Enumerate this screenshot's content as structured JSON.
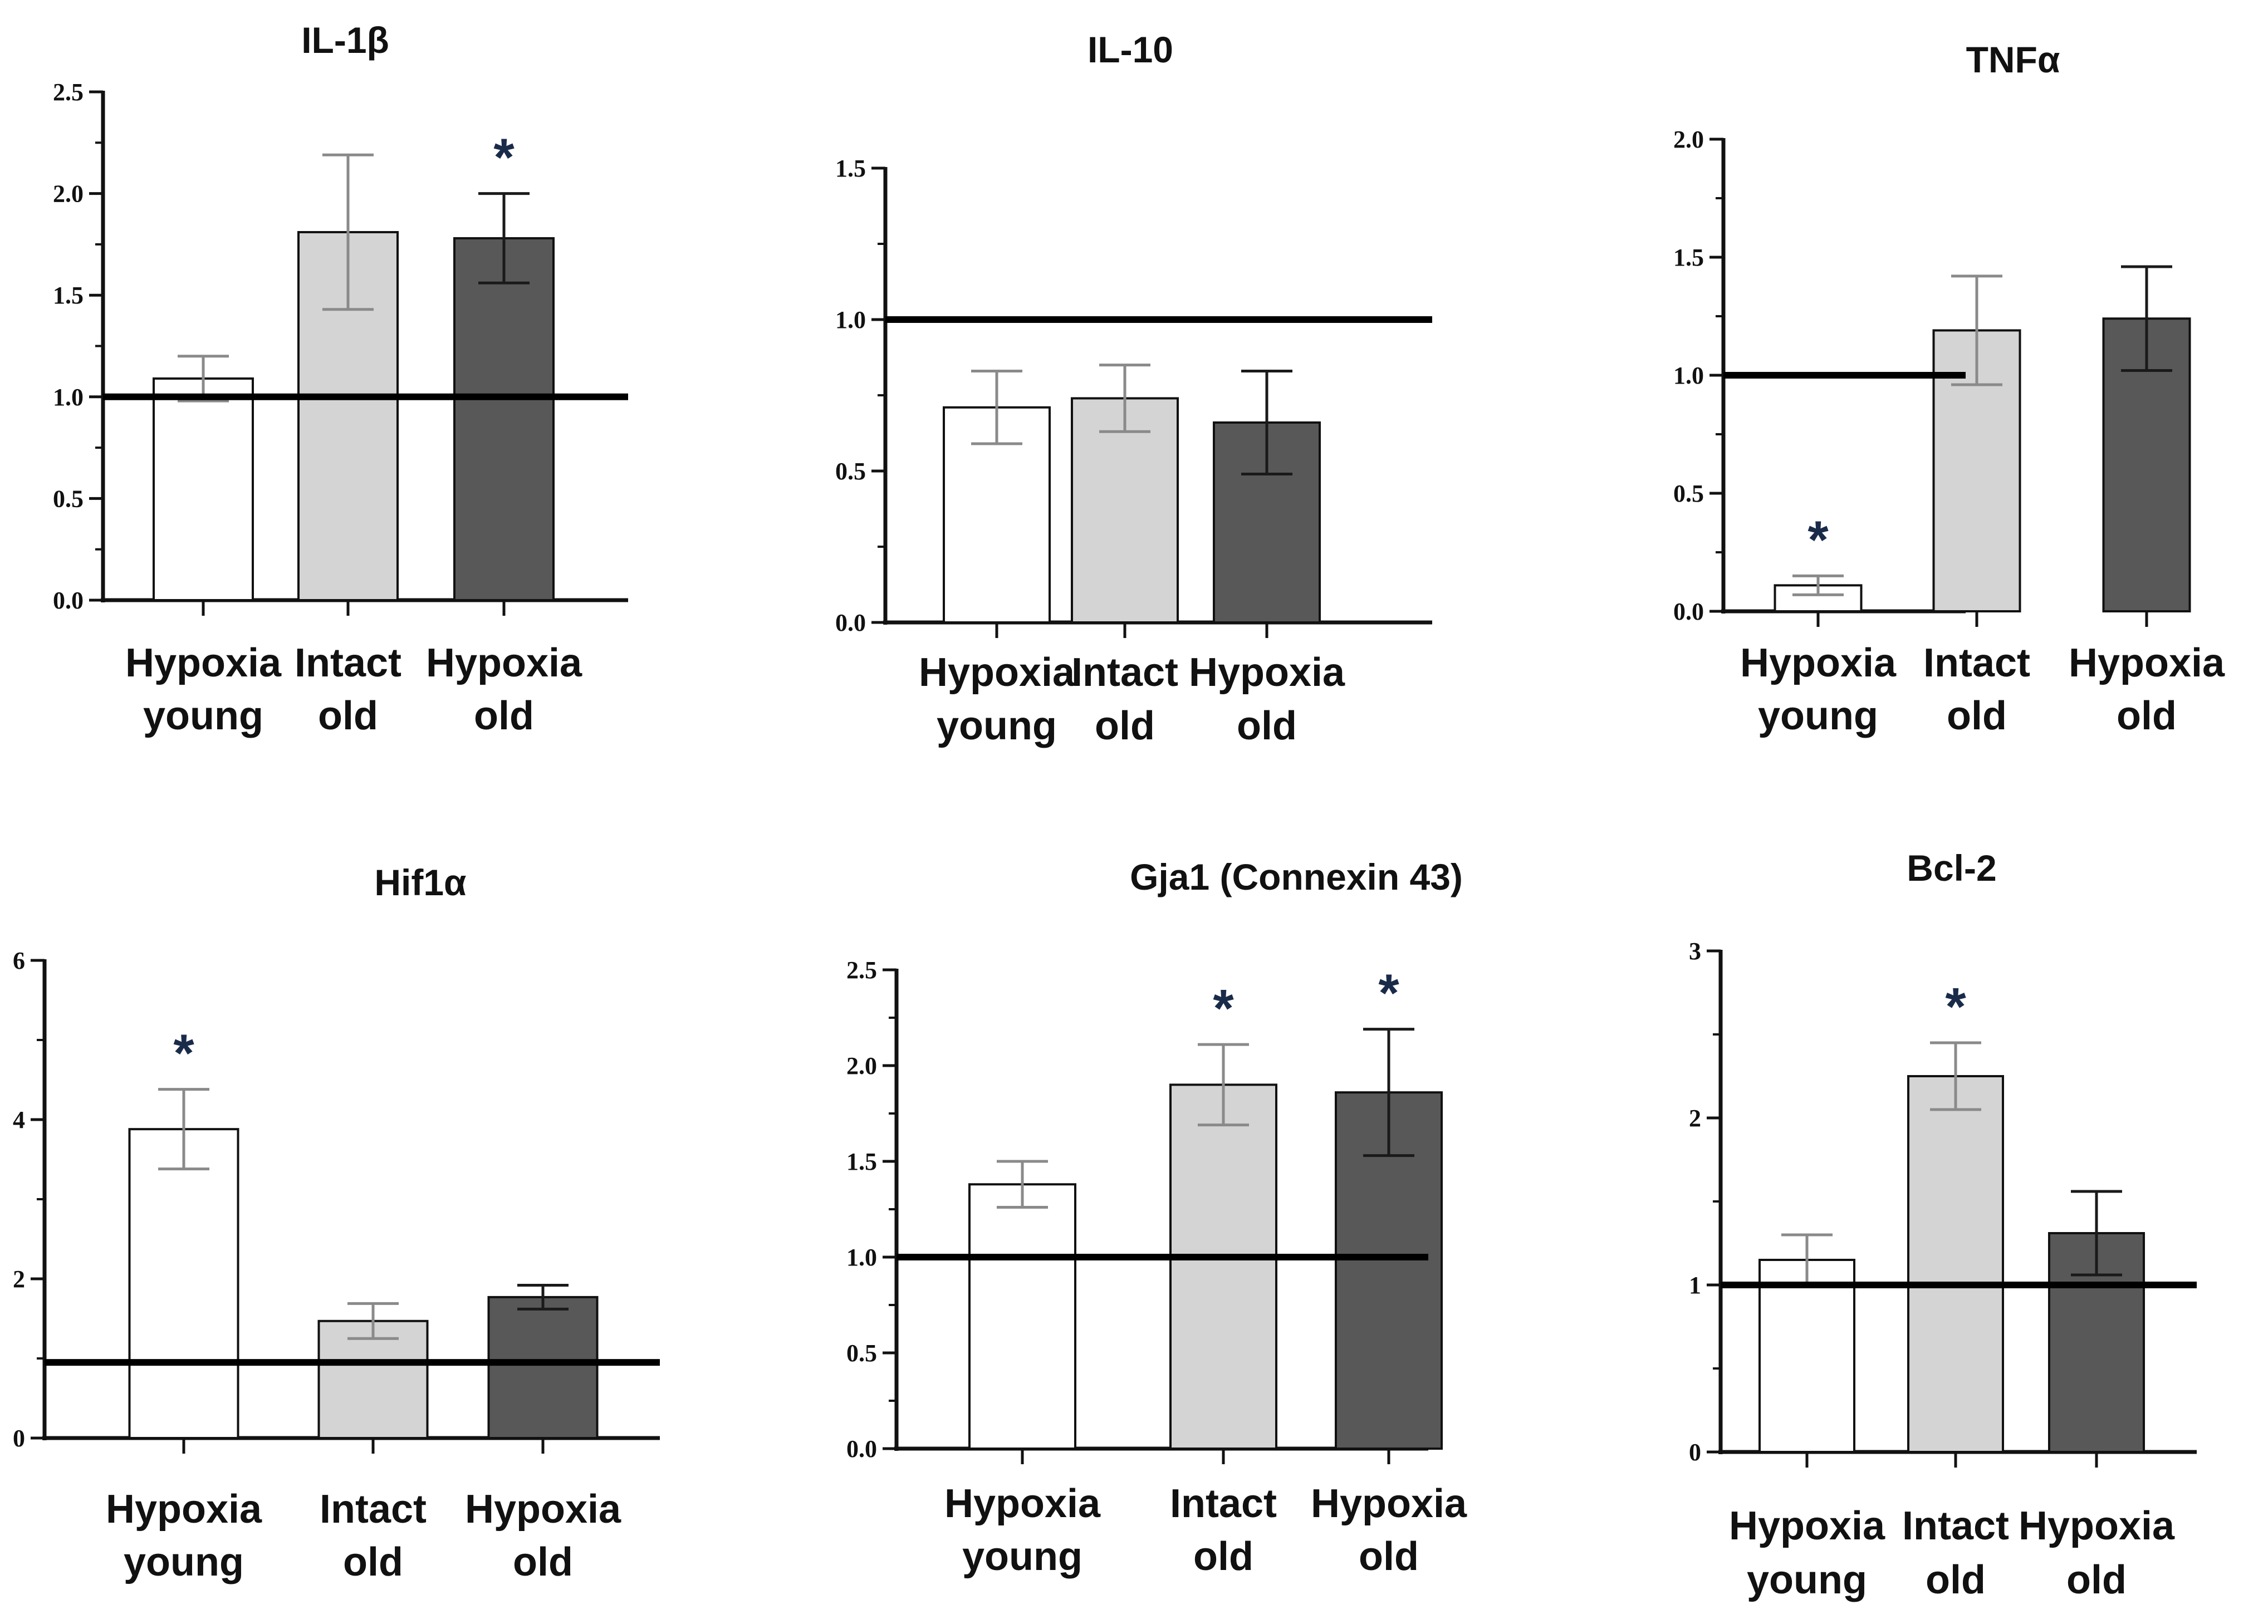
{
  "figure": {
    "description": "Six bar-chart panels of relative expression"
  },
  "chart_data": [
    {
      "type": "bar",
      "title": "IL-1β",
      "categories": [
        [
          "Hypoxia",
          "young"
        ],
        [
          "Intact",
          "old"
        ],
        [
          "Hypoxia",
          "old"
        ]
      ],
      "values": [
        1.09,
        1.81,
        1.78
      ],
      "errors": [
        0.11,
        0.38,
        0.22
      ],
      "ylim": [
        0,
        2.5
      ],
      "yticks": [
        "0.0",
        "0.5",
        "1.0",
        "1.5",
        "2.0",
        "2.5"
      ],
      "reference_line": 1.0,
      "significant": [
        false,
        false,
        true
      ],
      "significance_marker": "*"
    },
    {
      "type": "bar",
      "title": "IL-10",
      "categories": [
        [
          "Hypoxia",
          "young"
        ],
        [
          "Intact",
          "old"
        ],
        [
          "Hypoxia",
          "old"
        ]
      ],
      "values": [
        0.71,
        0.74,
        0.66
      ],
      "errors": [
        0.12,
        0.11,
        0.17
      ],
      "ylim": [
        0,
        1.5
      ],
      "yticks": [
        "0.0",
        "0.5",
        "1.0",
        "1.5"
      ],
      "reference_line": 1.0,
      "significant": [
        false,
        false,
        false
      ],
      "significance_marker": "*"
    },
    {
      "type": "bar",
      "title": "TNFα",
      "categories": [
        [
          "Hypoxia",
          "young"
        ],
        [
          "Intact",
          "old"
        ],
        [
          "Hypoxia",
          "old"
        ]
      ],
      "values": [
        0.11,
        1.19,
        1.24
      ],
      "errors": [
        0.04,
        0.23,
        0.22
      ],
      "ylim": [
        0,
        2.0
      ],
      "yticks": [
        "0.0",
        "0.5",
        "1.0",
        "1.5",
        "2.0"
      ],
      "reference_line": 1.0,
      "significant": [
        true,
        false,
        false
      ],
      "significance_marker": "*"
    },
    {
      "type": "bar",
      "title": "Hif1α",
      "categories": [
        [
          "Hypoxia",
          "young"
        ],
        [
          "Intact",
          "old"
        ],
        [
          "Hypoxia",
          "old"
        ]
      ],
      "values": [
        3.88,
        1.47,
        1.77
      ],
      "errors": [
        0.5,
        0.22,
        0.15
      ],
      "ylim": [
        0,
        6
      ],
      "yticks": [
        "0",
        "2",
        "4",
        "6"
      ],
      "reference_line": 0.95,
      "significant": [
        true,
        false,
        false
      ],
      "significance_marker": "*"
    },
    {
      "type": "bar",
      "title": "Gja1  (Connexin 43)",
      "categories": [
        [
          "Hypoxia",
          "young"
        ],
        [
          "Intact",
          "old"
        ],
        [
          "Hypoxia",
          "old"
        ]
      ],
      "values": [
        1.38,
        1.9,
        1.86
      ],
      "errors": [
        0.12,
        0.21,
        0.33
      ],
      "ylim": [
        0,
        2.5
      ],
      "yticks": [
        "0.0",
        "0.5",
        "1.0",
        "1.5",
        "2.0",
        "2.5"
      ],
      "reference_line": 1.0,
      "significant": [
        false,
        true,
        true
      ],
      "significance_marker": "*"
    },
    {
      "type": "bar",
      "title": "Bcl-2",
      "categories": [
        [
          "Hypoxia",
          "young"
        ],
        [
          "Intact",
          "old"
        ],
        [
          "Hypoxia",
          "old"
        ]
      ],
      "values": [
        1.15,
        2.25,
        1.31
      ],
      "errors": [
        0.15,
        0.2,
        0.25
      ],
      "ylim": [
        0,
        3
      ],
      "yticks": [
        "0",
        "1",
        "2",
        "3"
      ],
      "reference_line": 1.0,
      "significant": [
        false,
        true,
        false
      ],
      "significance_marker": "*"
    }
  ],
  "colors": {
    "bar_fills": [
      "#ffffff",
      "#d4d4d4",
      "#585858"
    ],
    "bar_stroke": "#111111",
    "error_bar_colors": [
      "#8a8a8a",
      "#8a8a8a",
      "#1a1a1a"
    ],
    "axis": "#111111",
    "reference_line": "#000000",
    "star": "#1a2b4a",
    "text": "#111111"
  }
}
